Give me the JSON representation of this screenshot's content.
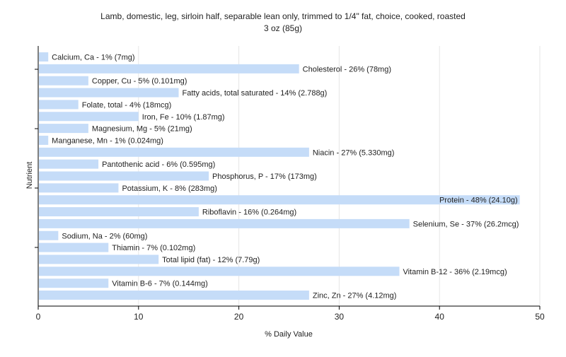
{
  "chart_data": {
    "type": "bar",
    "orientation": "horizontal",
    "title": "Lamb, domestic, leg, sirloin half, separable lean only, trimmed to 1/4\" fat, choice, cooked, roasted",
    "subtitle": "3 oz (85g)",
    "xlabel": "% Daily Value",
    "ylabel": "Nutrient",
    "xlim": [
      0,
      50
    ],
    "xticks": [
      0,
      10,
      20,
      30,
      40,
      50
    ],
    "grid": true,
    "bar_color": "#c5dcf8",
    "categories": [
      "Calcium, Ca",
      "Cholesterol",
      "Copper, Cu",
      "Fatty acids, total saturated",
      "Folate, total",
      "Iron, Fe",
      "Magnesium, Mg",
      "Manganese, Mn",
      "Niacin",
      "Pantothenic acid",
      "Phosphorus, P",
      "Potassium, K",
      "Protein",
      "Riboflavin",
      "Selenium, Se",
      "Sodium, Na",
      "Thiamin",
      "Total lipid (fat)",
      "Vitamin B-12",
      "Vitamin B-6",
      "Zinc, Zn"
    ],
    "values": [
      1,
      26,
      5,
      14,
      4,
      10,
      5,
      1,
      27,
      6,
      17,
      8,
      48,
      16,
      37,
      2,
      7,
      12,
      36,
      7,
      27
    ],
    "bar_labels": [
      "Calcium, Ca - 1% (7mg)",
      "Cholesterol - 26% (78mg)",
      "Copper, Cu - 5% (0.101mg)",
      "Fatty acids, total saturated - 14% (2.788g)",
      "Folate, total - 4% (18mcg)",
      "Iron, Fe - 10% (1.87mg)",
      "Magnesium, Mg - 5% (21mg)",
      "Manganese, Mn - 1% (0.024mg)",
      "Niacin - 27% (5.330mg)",
      "Pantothenic acid - 6% (0.595mg)",
      "Phosphorus, P - 17% (173mg)",
      "Potassium, K - 8% (283mg)",
      "Protein - 48% (24.10g)",
      "Riboflavin - 16% (0.264mg)",
      "Selenium, Se - 37% (26.2mcg)",
      "Sodium, Na - 2% (60mg)",
      "Thiamin - 7% (0.102mg)",
      "Total lipid (fat) - 12% (7.79g)",
      "Vitamin B-12 - 36% (2.19mcg)",
      "Vitamin B-6 - 7% (0.144mg)",
      "Zinc, Zn - 27% (4.12mg)"
    ]
  }
}
